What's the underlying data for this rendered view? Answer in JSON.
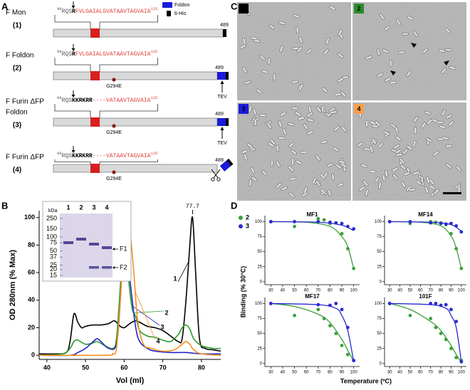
{
  "panel_labels": [
    "A",
    "B",
    "C",
    "D"
  ],
  "panel_a": {
    "legend": [
      {
        "label": "Foldon",
        "color": "#1a1adb"
      },
      {
        "label": "6-His",
        "color": "#000000"
      }
    ],
    "constructs": [
      {
        "name": [
          "F Mon"
        ],
        "number": "(1)",
        "number_color": "#000000",
        "seq": {
          "start": "99",
          "head": "RQS",
          "bold": "R",
          "tail": "FVLGAIALGVATAAVTAGVAIA",
          "end": "125"
        },
        "end_label": "489",
        "foldon": "none"
      },
      {
        "name": [
          "F Foldon"
        ],
        "number": "(2)",
        "number_color": "#2a8a2a",
        "seq": {
          "start": "99",
          "head": "RQS",
          "bold": "R",
          "tail": "FVLGAIALGVATAAVTAGVAIA",
          "end": "125"
        },
        "end_label": "489",
        "foldon": "attached",
        "mutation": "G294E",
        "tev": "TEV"
      },
      {
        "name": [
          "F Furin ΔFP",
          "Foldon"
        ],
        "number": "(3)",
        "number_color": "#1a1adb",
        "seq": {
          "start": "99",
          "head": "RQS",
          "bold": "KKRKRR",
          "tail": "----VATAAVTAGVAIA",
          "end": "125"
        },
        "end_label": "489",
        "foldon": "attached",
        "mutation": "G294E",
        "tev": "TEV"
      },
      {
        "name": [
          "F Furin ΔFP"
        ],
        "number": "(4)",
        "number_color": "#f08c1e",
        "seq": {
          "start": "99",
          "head": "RQS",
          "bold": "KKRKRR",
          "tail": "----VATAAVTAGVAIA",
          "end": "125"
        },
        "end_label": "489",
        "foldon": "cleaved",
        "mutation": "G294E"
      }
    ]
  },
  "panel_c": {
    "images": [
      {
        "label": "1",
        "color": "#000000"
      },
      {
        "label": "2",
        "color": "#2a8a2a"
      },
      {
        "label": "3",
        "color": "#1a1adb"
      },
      {
        "label": "4",
        "color": "#f5a04a"
      }
    ]
  },
  "gel": {
    "unit": "kDa",
    "lanes": [
      {
        "label": "1",
        "color": "#000000"
      },
      {
        "label": "2",
        "color": "#2a8a2a"
      },
      {
        "label": "3",
        "color": "#1a1adb"
      },
      {
        "label": "4",
        "color": "#f08c1e"
      }
    ],
    "markers": [
      250,
      150,
      100,
      75,
      50,
      37,
      25,
      20,
      15
    ],
    "bands": [
      "F1",
      "F2"
    ]
  },
  "panel_d": {
    "ylabel": "Binding (% 30°C)",
    "xlabel": "Temperature (ºC)"
  },
  "chart_data": [
    {
      "type": "line",
      "xlabel": "Vol (ml)",
      "ylabel": "OD 280nm (% Max)",
      "xlim": [
        38,
        85
      ],
      "xticks": [
        40,
        50,
        60,
        70,
        80
      ],
      "ylim": [
        -3,
        105
      ],
      "yticks": [
        0,
        20,
        40,
        60,
        80,
        100
      ],
      "annotations": [
        {
          "value": 60.0,
          "label": "60.0"
        },
        {
          "value": 77.7,
          "label": "77.7"
        }
      ],
      "series": [
        {
          "name": "1",
          "color": "#000000",
          "x": [
            38,
            42,
            45,
            46,
            47,
            48,
            49,
            50,
            52,
            54,
            56,
            57.5,
            59,
            60,
            61,
            62,
            63,
            64,
            66,
            68,
            70,
            72,
            74,
            75,
            76,
            77,
            77.7,
            78.5,
            79.5,
            81,
            83,
            85
          ],
          "values": [
            1,
            1,
            2,
            10,
            30,
            24,
            20,
            21,
            22,
            22,
            23,
            25,
            21,
            20,
            22,
            24,
            25,
            24,
            21,
            20,
            18,
            14,
            10,
            12,
            40,
            80,
            100,
            60,
            12,
            5,
            4,
            3
          ]
        },
        {
          "name": "2",
          "color": "#2e9b2e",
          "x": [
            38,
            44,
            46,
            47,
            48,
            50,
            52,
            53,
            55,
            57,
            58,
            59,
            60,
            61,
            62,
            63,
            64,
            66,
            68,
            70,
            72,
            74,
            75,
            76,
            77,
            78,
            80,
            83,
            85
          ],
          "values": [
            0,
            1,
            5,
            10,
            11,
            8,
            9,
            10,
            7,
            5,
            12,
            50,
            100,
            60,
            35,
            28,
            18,
            14,
            13,
            11,
            10,
            15,
            20,
            22,
            19,
            12,
            7,
            5,
            5
          ]
        },
        {
          "name": "3",
          "color": "#2323c8",
          "x": [
            38,
            46,
            48,
            50,
            52,
            53,
            54,
            56,
            58,
            59,
            60,
            60.3,
            61,
            62,
            63,
            64,
            66,
            68,
            72,
            76,
            80,
            85
          ],
          "values": [
            0,
            0,
            2,
            5,
            10,
            12,
            10,
            5,
            8,
            40,
            95,
            100,
            70,
            42,
            20,
            10,
            5,
            3,
            2,
            2,
            1,
            1
          ]
        },
        {
          "name": "4",
          "color": "#f5901f",
          "x": [
            38,
            55,
            57,
            58,
            59,
            60,
            60.6,
            61.5,
            62.5,
            63.5,
            65,
            67,
            70,
            73,
            75,
            76,
            77,
            78,
            80,
            85
          ],
          "values": [
            0,
            0,
            1,
            5,
            40,
            90,
            100,
            90,
            60,
            25,
            8,
            5,
            3,
            4,
            8,
            10,
            8,
            4,
            1,
            0
          ]
        }
      ]
    },
    {
      "type": "scatter",
      "title": "MF1",
      "xlim": [
        25,
        105
      ],
      "xticks": [
        30,
        40,
        50,
        60,
        70,
        80,
        90,
        100
      ],
      "ylim": [
        -5,
        110
      ],
      "yticks": [
        0,
        25,
        50,
        75,
        100
      ],
      "series": [
        {
          "name": "2",
          "color": "#3aa03a",
          "x": [
            30,
            50,
            70,
            75,
            80,
            90,
            95,
            100
          ],
          "values": [
            100,
            92,
            105,
            103,
            97,
            80,
            55,
            22
          ],
          "fit_x": [
            30,
            60,
            80,
            90,
            95,
            100
          ],
          "fit_values": [
            100,
            99,
            92,
            75,
            58,
            22
          ]
        },
        {
          "name": "3",
          "color": "#2a2ad0",
          "x": [
            30,
            50,
            70,
            80,
            85,
            90,
            95,
            100
          ],
          "values": [
            100,
            100,
            100,
            99,
            98,
            97,
            92,
            88
          ],
          "fit_x": [
            30,
            70,
            90,
            100
          ],
          "fit_values": [
            100,
            99,
            94,
            85
          ]
        }
      ]
    },
    {
      "type": "scatter",
      "title": "MF14",
      "xlim": [
        25,
        105
      ],
      "xticks": [
        30,
        40,
        50,
        60,
        70,
        80,
        90,
        100
      ],
      "ylim": [
        -5,
        110
      ],
      "yticks": [
        0,
        25,
        50,
        75,
        100
      ],
      "series": [
        {
          "color": "#3aa03a",
          "x": [
            30,
            50,
            70,
            75,
            80,
            85,
            90,
            95,
            100
          ],
          "values": [
            100,
            97,
            100,
            99,
            98,
            95,
            80,
            55,
            22
          ],
          "fit_x": [
            30,
            60,
            80,
            90,
            95,
            100
          ],
          "fit_values": [
            100,
            99,
            93,
            76,
            56,
            22
          ]
        },
        {
          "color": "#2a2ad0",
          "x": [
            30,
            50,
            70,
            80,
            85,
            90,
            95,
            100
          ],
          "values": [
            100,
            100,
            98,
            97,
            96,
            97,
            93,
            83
          ],
          "fit_x": [
            30,
            70,
            90,
            100
          ],
          "fit_values": [
            100,
            99,
            95,
            84
          ]
        }
      ]
    },
    {
      "type": "scatter",
      "title": "MF17",
      "xlim": [
        25,
        105
      ],
      "xticks": [
        30,
        40,
        50,
        60,
        70,
        80,
        90,
        100
      ],
      "ylim": [
        -5,
        110
      ],
      "yticks": [
        0,
        25,
        50,
        75,
        100
      ],
      "series": [
        {
          "color": "#3aa03a",
          "x": [
            30,
            50,
            70,
            75,
            80,
            85,
            90,
            95,
            100
          ],
          "values": [
            100,
            80,
            90,
            75,
            63,
            50,
            30,
            15,
            5
          ],
          "fit_x": [
            30,
            50,
            70,
            80,
            90,
            95,
            100
          ],
          "fit_values": [
            100,
            95,
            82,
            68,
            40,
            22,
            3
          ]
        },
        {
          "color": "#2a2ad0",
          "x": [
            30,
            70,
            80,
            85,
            90,
            95,
            100
          ],
          "values": [
            100,
            98,
            97,
            100,
            90,
            60,
            5
          ],
          "fit_x": [
            30,
            70,
            85,
            90,
            95,
            100
          ],
          "fit_values": [
            100,
            98,
            92,
            80,
            55,
            3
          ]
        }
      ]
    },
    {
      "type": "scatter",
      "title": "101F",
      "xlim": [
        25,
        105
      ],
      "xticks": [
        30,
        40,
        50,
        60,
        70,
        80,
        90,
        100
      ],
      "ylim": [
        -5,
        110
      ],
      "yticks": [
        0,
        25,
        50,
        75,
        100
      ],
      "series": [
        {
          "color": "#3aa03a",
          "x": [
            30,
            50,
            70,
            75,
            80,
            85,
            90,
            95,
            100
          ],
          "values": [
            100,
            80,
            75,
            60,
            50,
            40,
            25,
            10,
            5
          ],
          "fit_x": [
            30,
            50,
            70,
            80,
            90,
            95,
            100
          ],
          "fit_values": [
            100,
            90,
            70,
            55,
            30,
            15,
            2
          ]
        },
        {
          "color": "#2a2ad0",
          "x": [
            30,
            70,
            75,
            80,
            85,
            90,
            95,
            100
          ],
          "values": [
            100,
            100,
            100,
            97,
            98,
            90,
            70,
            3
          ],
          "fit_x": [
            30,
            70,
            85,
            90,
            95,
            100
          ],
          "fit_values": [
            100,
            98,
            92,
            80,
            60,
            3
          ]
        }
      ]
    }
  ]
}
